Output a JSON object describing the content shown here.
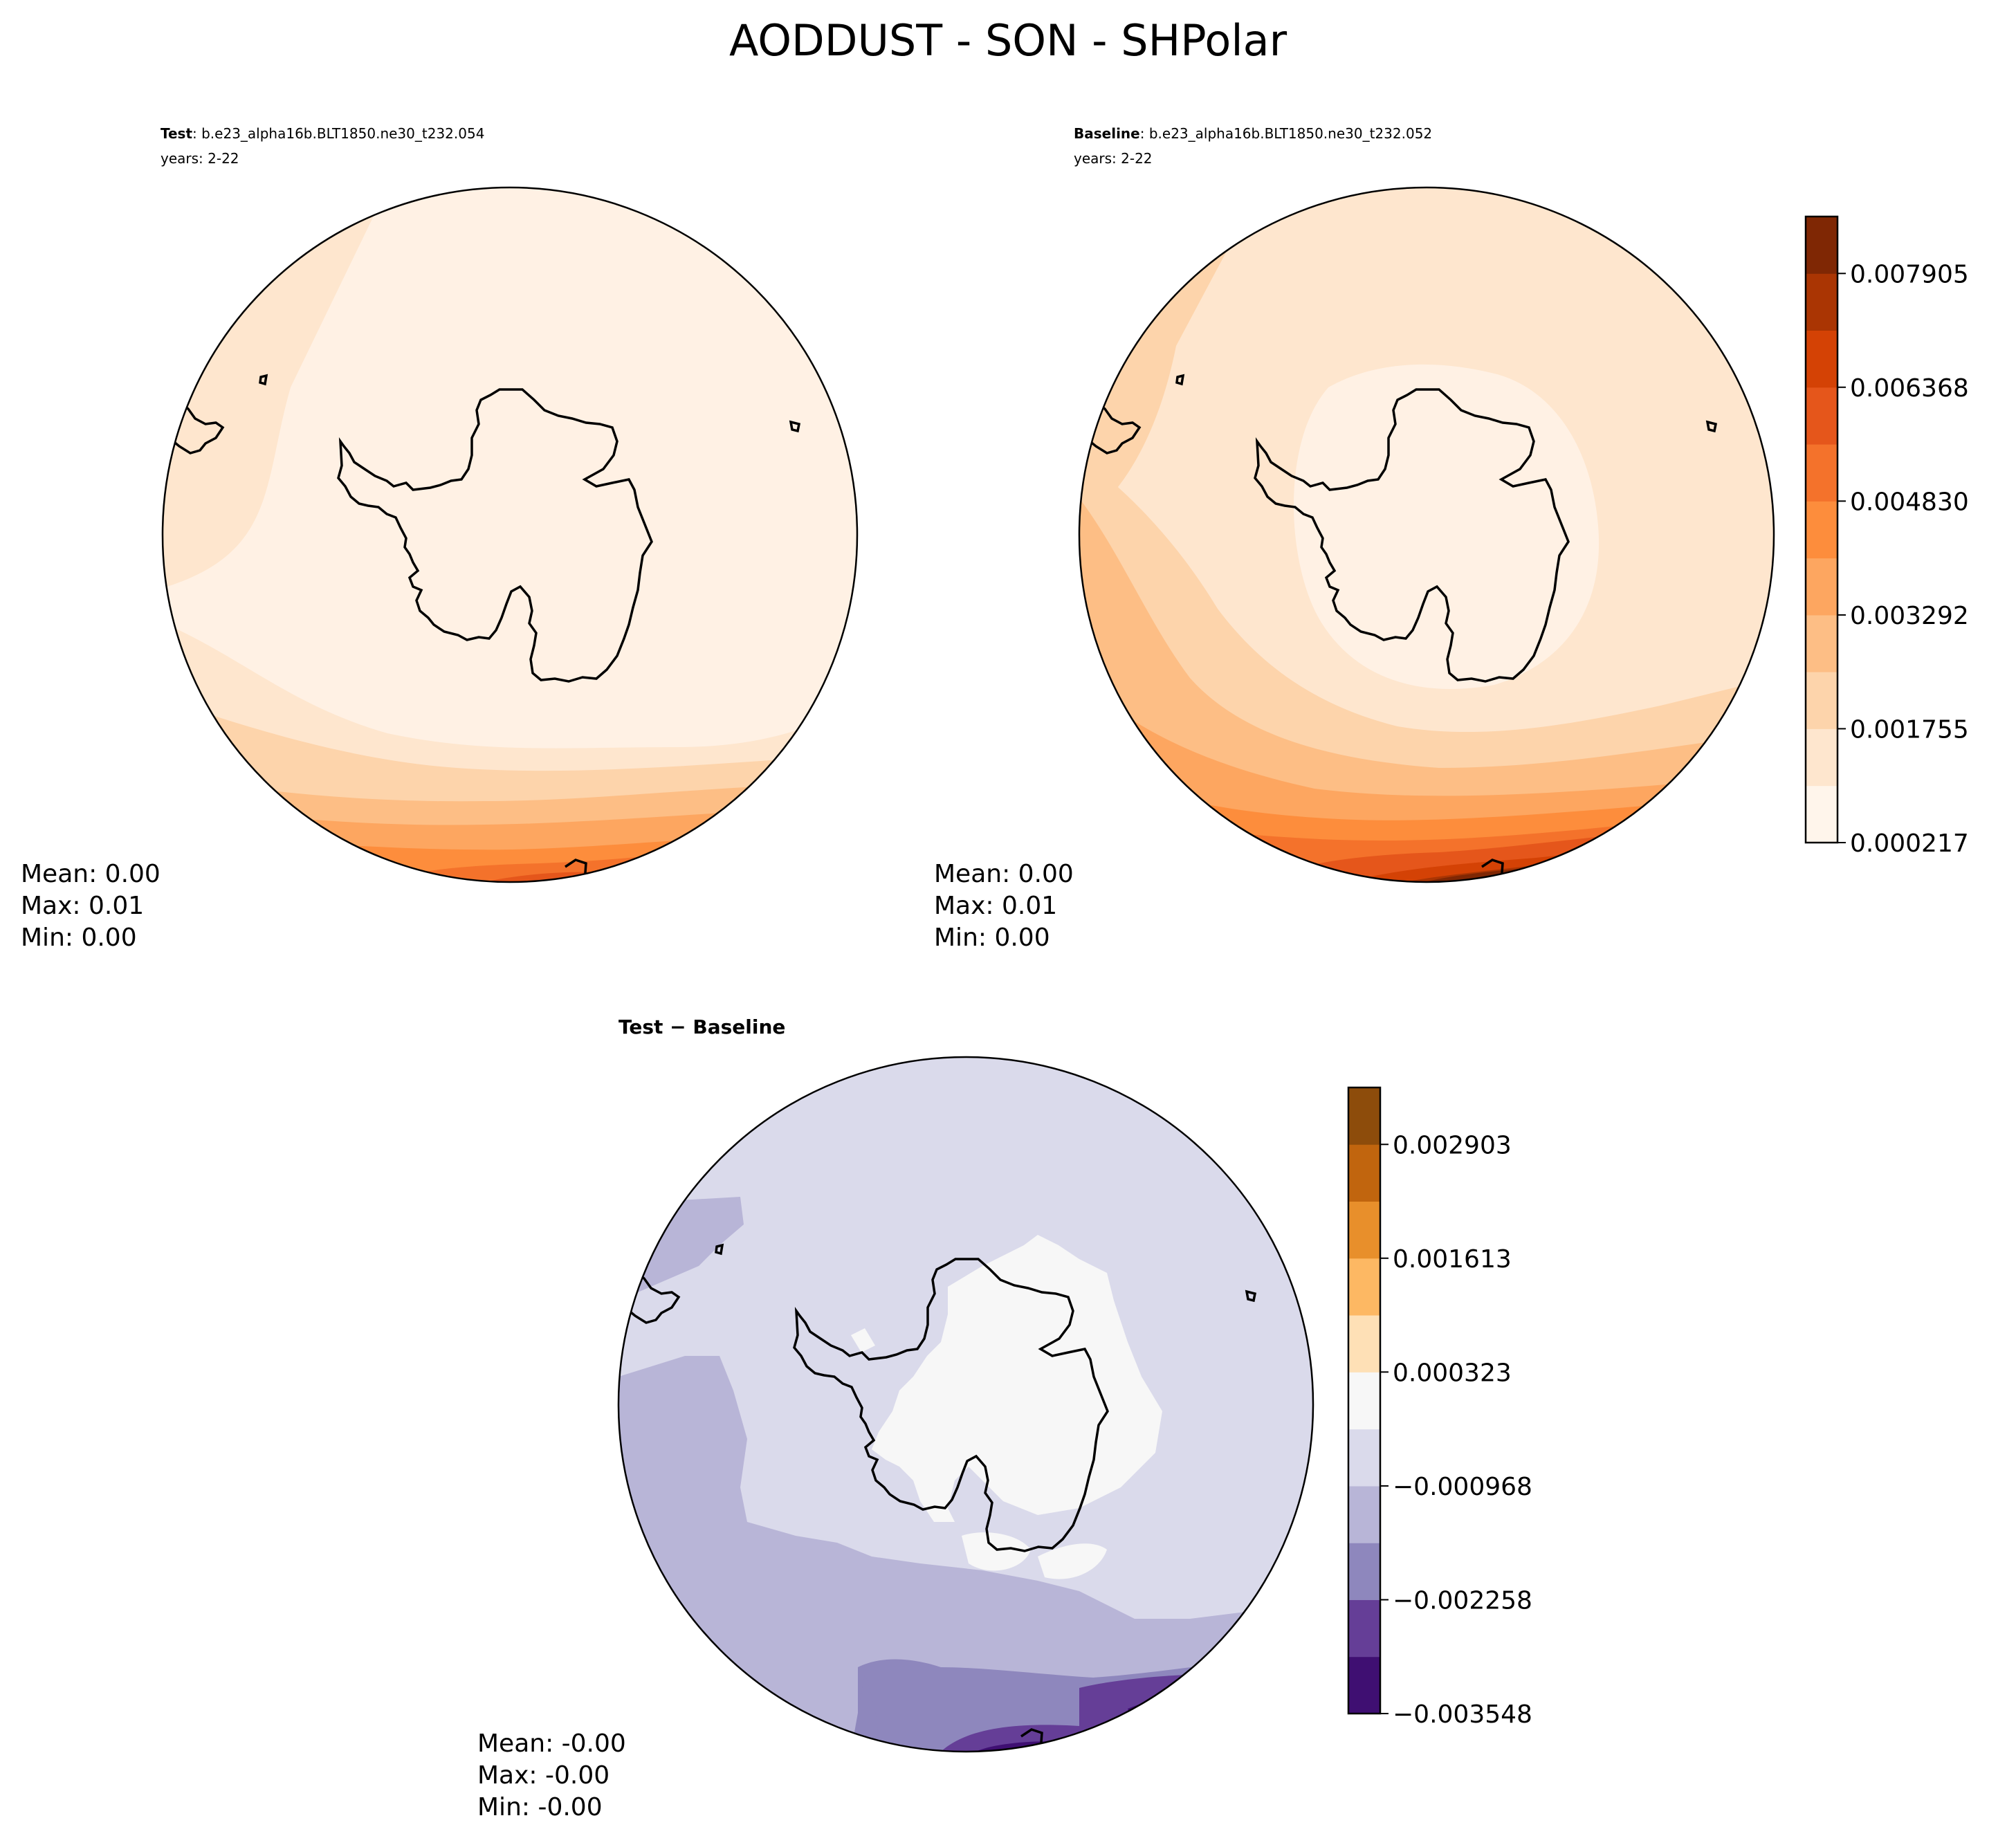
{
  "figure": {
    "title": "AODDUST - SON - SHPolar"
  },
  "chart_data": [
    {
      "type": "heatmap",
      "projection": "south-polar-stereographic",
      "panel": "test",
      "label_bold": "Test",
      "label_rest": ": b.e23_alpha16b.BLT1850.ne30_t232.054",
      "years": "years: 2-22",
      "stats": {
        "mean": "Mean:  0.00",
        "max": "Max:  0.01",
        "min": "Min:  0.00"
      },
      "colorbar": null,
      "field_description": "dust AOD low over Antarctica, increasing toward lower latitudes at the bottom of the map (up to ~0.006)",
      "colormap": "Oranges"
    },
    {
      "type": "heatmap",
      "projection": "south-polar-stereographic",
      "panel": "baseline",
      "label_bold": "Baseline",
      "label_rest": ": b.e23_alpha16b.BLT1850.ne30_t232.052",
      "years": "years: 2-22",
      "stats": {
        "mean": "Mean:  0.00",
        "max": "Max:  0.01",
        "min": "Min:  0.00"
      },
      "colorbar": {
        "levels": [
          0.000217,
          0.000986,
          0.001755,
          0.002524,
          0.003292,
          0.004061,
          0.00483,
          0.005599,
          0.006368,
          0.007137,
          0.007905,
          0.008674
        ],
        "tick_labels": [
          "0.000217",
          "0.001755",
          "0.003292",
          "0.004830",
          "0.006368",
          "0.007905"
        ],
        "colors": [
          "#fff5eb",
          "#fee6ce",
          "#fdd4ab",
          "#fdbe85",
          "#fda660",
          "#fd8d3c",
          "#f4722b",
          "#e5561b",
          "#d44205",
          "#aa3503",
          "#7f2704"
        ]
      },
      "colormap": "Oranges"
    },
    {
      "type": "heatmap",
      "projection": "south-polar-stereographic",
      "panel": "difference",
      "label_bold": "Test − Baseline",
      "stats": {
        "mean": "Mean: -0.00",
        "max": "Max: -0.00",
        "min": "Min: -0.00"
      },
      "colorbar": {
        "levels": [
          -0.003548,
          -0.002903,
          -0.002258,
          -0.001613,
          -0.000968,
          -0.000323,
          0.000323,
          0.000968,
          0.001613,
          0.002258,
          0.002903,
          0.003548
        ],
        "tick_labels": [
          "−0.003548",
          "−0.002258",
          "−0.000968",
          "0.000323",
          "0.001613",
          "0.002903"
        ],
        "colors": [
          "#3f0f72",
          "#653e97",
          "#8e87bd",
          "#b8b5d7",
          "#dadaeb",
          "#f7f7f7",
          "#fee0b6",
          "#fdb863",
          "#e88f2b",
          "#c1650e",
          "#8d4c0b"
        ]
      },
      "field_description": "mostly slightly negative differences; near zero over Antarctica, most negative near bottom edge",
      "colormap": "PuOr_r"
    }
  ]
}
